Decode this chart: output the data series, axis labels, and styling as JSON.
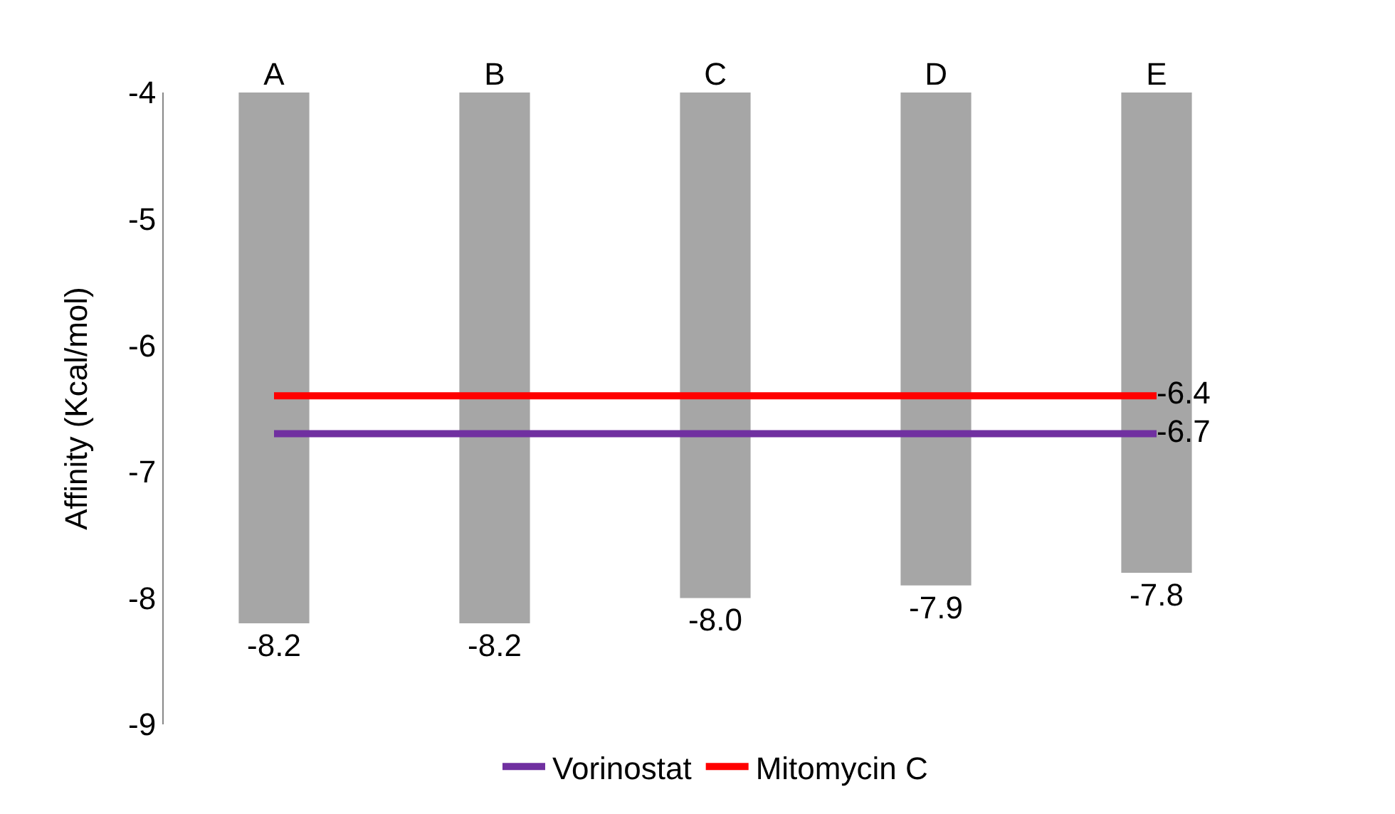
{
  "chart_data": {
    "type": "bar",
    "ylabel": "Affinity (Kcal/mol)",
    "categories": [
      "A",
      "B",
      "C",
      "D",
      "E"
    ],
    "series": [
      {
        "color": "#a6a6a6",
        "values": [
          -8.2,
          -8.2,
          -8.0,
          -7.9,
          -7.8
        ],
        "value_labels": [
          "-8.2",
          "-8.2",
          "-8.0",
          "-7.9",
          "-7.8"
        ]
      },
      {
        "type": "line",
        "name": "Vorinostat",
        "color": "#7030a0",
        "values": [
          -6.7,
          -6.7,
          -6.7,
          -6.7,
          -6.7
        ],
        "value_labels": [
          null,
          null,
          null,
          null,
          "-6.7"
        ]
      },
      {
        "type": "line",
        "name": "Mitomycin C",
        "color": "#ff0000",
        "values": [
          -6.4,
          -6.4,
          -6.4,
          -6.4,
          -6.4
        ],
        "value_labels": [
          null,
          null,
          null,
          null,
          "-6.4"
        ]
      }
    ],
    "ylim": [
      -9,
      -4
    ],
    "yticks": [
      -9,
      -8,
      -7,
      -6,
      -5,
      -4
    ],
    "grid": false,
    "legend": "bottom"
  }
}
